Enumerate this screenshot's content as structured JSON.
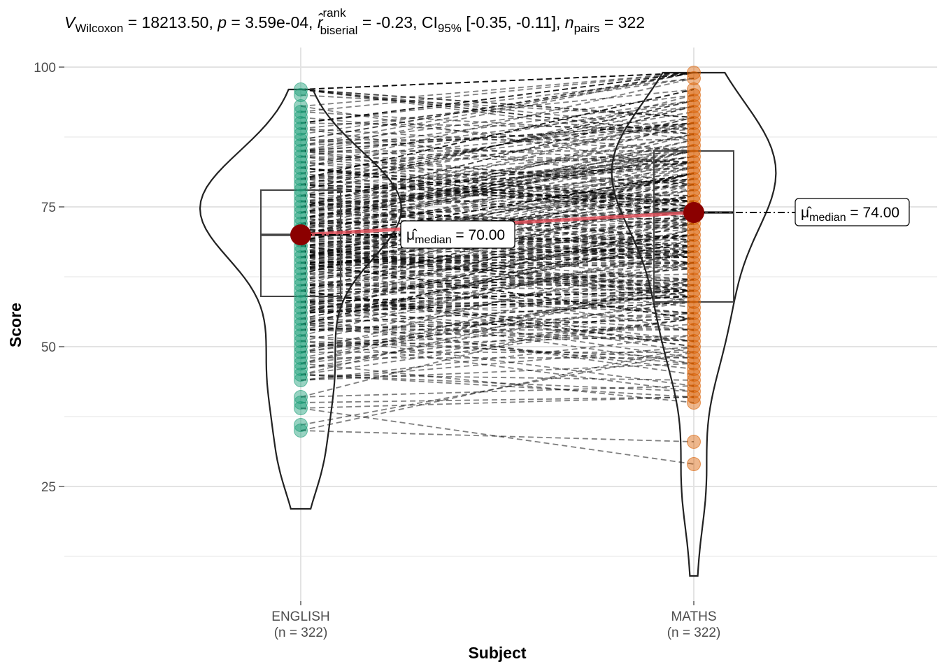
{
  "chart_data": {
    "type": "paired-violin-box-scatter",
    "subtitle": {
      "stat_symbol": "V",
      "stat_sub": "Wilcoxon",
      "stat_value": " = 18213.50, ",
      "p_symbol": "p",
      "p_value": " = 3.59e-04, ",
      "effect_symbol": "r̂",
      "effect_sup": "rank",
      "effect_sub": "biserial",
      "effect_value": " = -0.23, CI",
      "ci_sub": "95%",
      "ci_value": " [-0.35, -0.11], ",
      "n_symbol": "n",
      "n_sub": "pairs",
      "n_value": " = 322"
    },
    "xlabel": "Subject",
    "ylabel": "Score",
    "ylim": [
      5,
      104
    ],
    "yticks": [
      25,
      50,
      75,
      100
    ],
    "categories": [
      {
        "name": "ENGLISH",
        "n_label": "(n = 322)",
        "color": "#1B9E77"
      },
      {
        "name": "MATHS",
        "n_label": "(n = 322)",
        "color": "#D95F02"
      }
    ],
    "box": {
      "ENGLISH": {
        "q1": 59,
        "median": 70,
        "q3": 78
      },
      "MATHS": {
        "q1": 58,
        "median": 74,
        "q3": 85
      }
    },
    "range": {
      "ENGLISH": [
        21,
        96
      ],
      "MATHS": [
        9,
        99
      ]
    },
    "medians": {
      "ENGLISH": {
        "value": 70,
        "label_symbol": "μ̂",
        "label_sub": "median",
        "label_value": " = 70.00"
      },
      "MATHS": {
        "value": 74,
        "label_symbol": "μ̂",
        "label_sub": "median",
        "label_value": " = 74.00"
      }
    },
    "median_point_color": "#8B0000",
    "median_line_color": "#E8505B",
    "pair_line_color": "#000000",
    "grid": true
  }
}
